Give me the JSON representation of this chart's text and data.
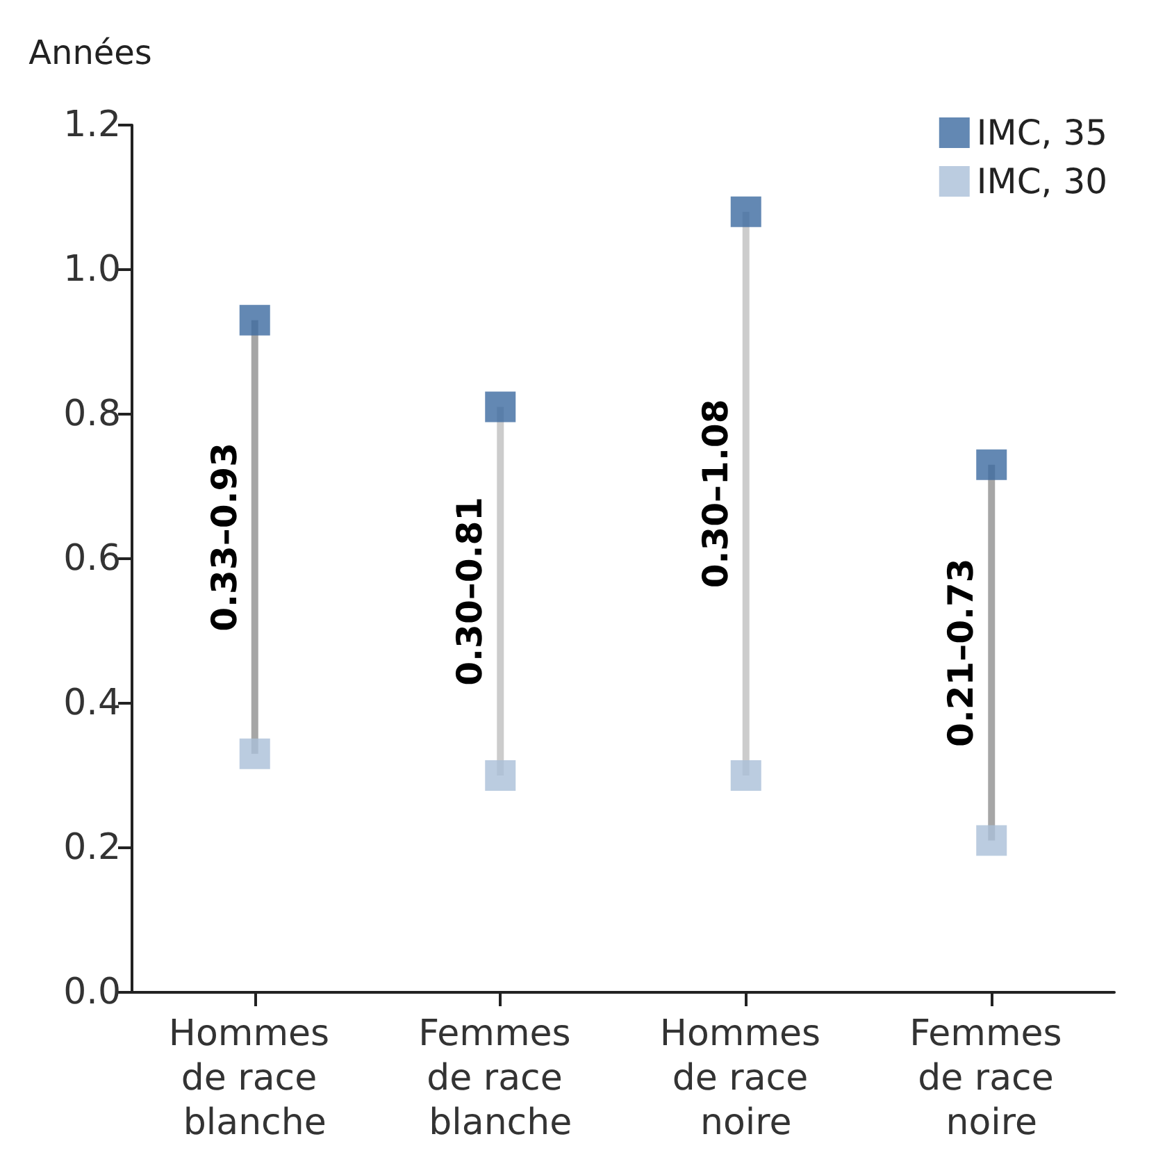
{
  "chart_data": {
    "type": "bar",
    "ylabel": "Années",
    "categories": [
      "Hommes de race blanche",
      "Femmes de race blanche",
      "Hommes de race noire",
      "Femmes de race noire"
    ],
    "series": [
      {
        "base": [
          0.33,
          0.3,
          0.3,
          0.21
        ],
        "values": [
          0.6,
          0.51,
          0.78,
          0.52
        ],
        "colors": [
          "#a6a6a6",
          "#cccccc",
          "#cccccc",
          "#a6a6a6"
        ],
        "value_labels": [
          "0.33–0.93",
          "0.30–0.81",
          "0.30–1.08",
          "0.21–0.73"
        ]
      },
      {
        "type": "scatter",
        "name": "IMC, 35",
        "color": "#3c6aa0",
        "values": [
          0.93,
          0.81,
          1.08,
          0.73
        ]
      },
      {
        "type": "scatter",
        "name": "IMC, 30",
        "color": "#aabfd8",
        "values": [
          0.33,
          0.3,
          0.3,
          0.21
        ]
      }
    ],
    "ylim": [
      0,
      1.2
    ],
    "yticks": [
      {
        "value": 0,
        "label": "0.0"
      },
      {
        "value": 0.2,
        "label": "0.2"
      },
      {
        "value": 0.4,
        "label": "0.4"
      },
      {
        "value": 0.6,
        "label": "0.6"
      },
      {
        "value": 0.8,
        "label": "0.8"
      },
      {
        "value": 1.0,
        "label": "1.0"
      },
      {
        "value": 1.2,
        "label": "1.2"
      }
    ],
    "grid": false,
    "legend": "top right",
    "marker": "square"
  }
}
